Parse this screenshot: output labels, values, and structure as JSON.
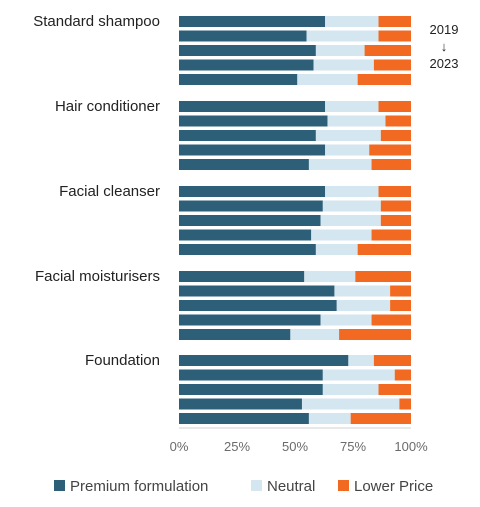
{
  "chart_data": {
    "type": "bar",
    "orientation": "horizontal",
    "stacked": true,
    "normalized": true,
    "groups": [
      {
        "label": "Standard shampoo",
        "bars": [
          [
            0.63,
            0.23,
            0.14
          ],
          [
            0.55,
            0.31,
            0.14
          ],
          [
            0.59,
            0.21,
            0.2
          ],
          [
            0.58,
            0.26,
            0.16
          ],
          [
            0.51,
            0.26,
            0.23
          ]
        ]
      },
      {
        "label": "Hair conditioner",
        "bars": [
          [
            0.63,
            0.23,
            0.14
          ],
          [
            0.64,
            0.25,
            0.11
          ],
          [
            0.59,
            0.28,
            0.13
          ],
          [
            0.63,
            0.19,
            0.18
          ],
          [
            0.56,
            0.27,
            0.17
          ]
        ]
      },
      {
        "label": "Facial cleanser",
        "bars": [
          [
            0.63,
            0.23,
            0.14
          ],
          [
            0.62,
            0.25,
            0.13
          ],
          [
            0.61,
            0.26,
            0.13
          ],
          [
            0.57,
            0.26,
            0.17
          ],
          [
            0.59,
            0.18,
            0.23
          ]
        ]
      },
      {
        "label": "Facial moisturisers",
        "bars": [
          [
            0.54,
            0.22,
            0.24
          ],
          [
            0.67,
            0.24,
            0.09
          ],
          [
            0.68,
            0.23,
            0.09
          ],
          [
            0.61,
            0.22,
            0.17
          ],
          [
            0.48,
            0.21,
            0.31
          ]
        ]
      },
      {
        "label": "Foundation",
        "bars": [
          [
            0.73,
            0.11,
            0.16
          ],
          [
            0.62,
            0.31,
            0.07
          ],
          [
            0.62,
            0.24,
            0.14
          ],
          [
            0.53,
            0.42,
            0.05
          ],
          [
            0.56,
            0.18,
            0.26
          ]
        ]
      }
    ],
    "series": [
      {
        "name": "Premium formulation",
        "color": "#2e5f78"
      },
      {
        "name": "Neutral",
        "color": "#d4e6ef"
      },
      {
        "name": "Lower Price",
        "color": "#f26a21"
      }
    ],
    "xticks": [
      "0%",
      "25%",
      "50%",
      "75%",
      "100%"
    ],
    "xlim": [
      0,
      1
    ],
    "year_annotation": {
      "start": "2019",
      "arrow": "↓",
      "end": "2023"
    },
    "legend_position": "bottom",
    "grid": false
  }
}
